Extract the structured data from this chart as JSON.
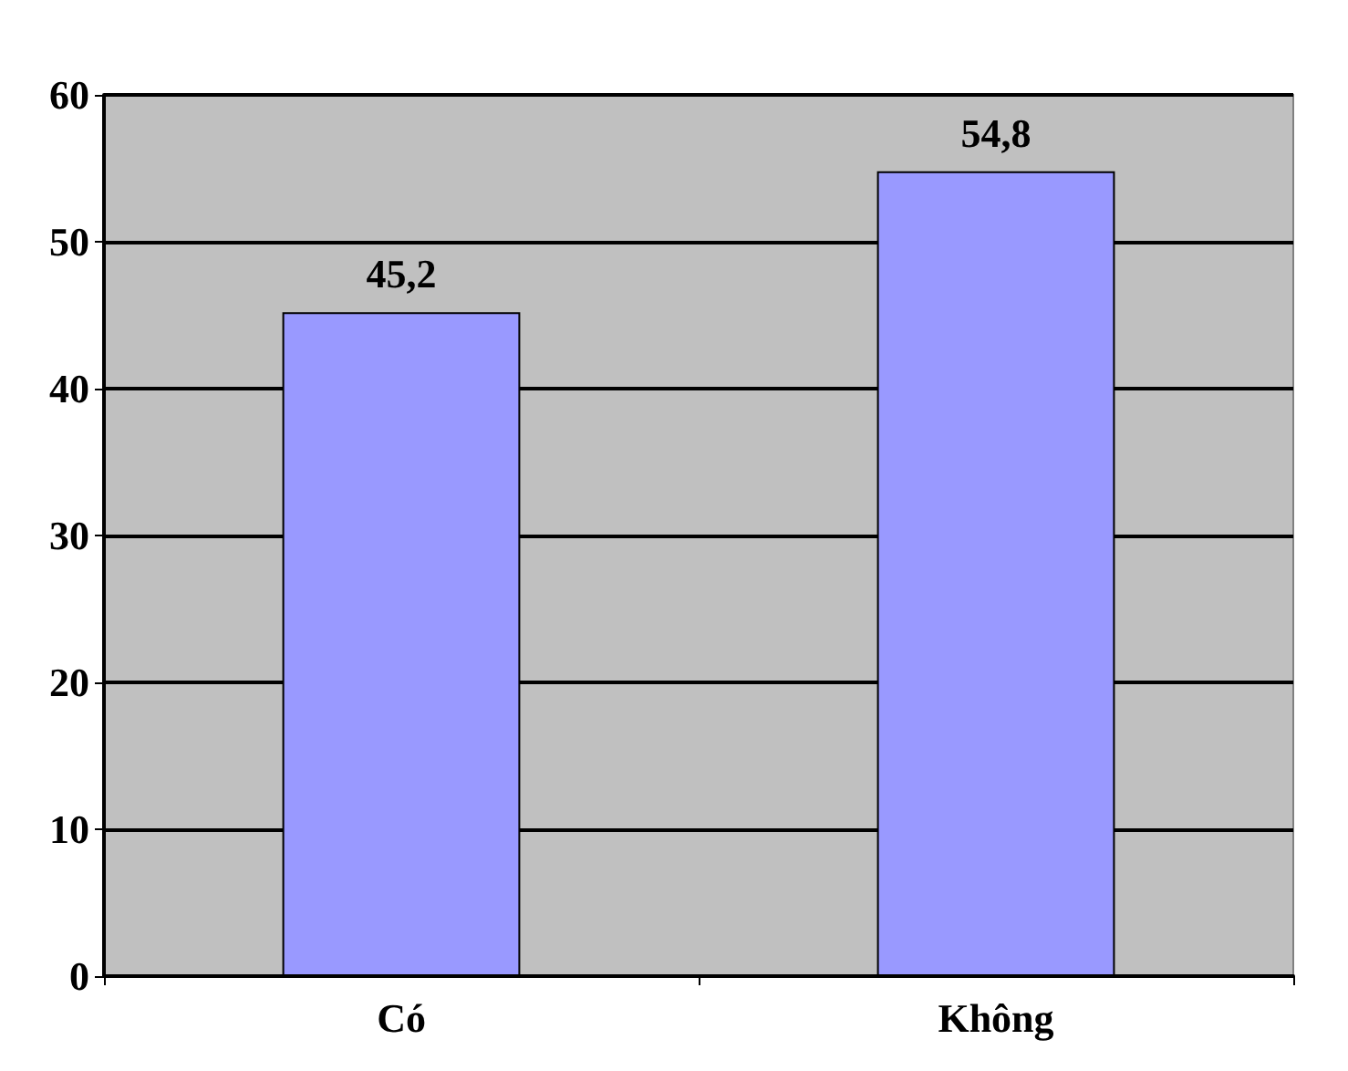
{
  "chart_data": {
    "type": "bar",
    "categories": [
      "Có",
      "Không"
    ],
    "values": [
      45.2,
      54.8
    ],
    "value_labels": [
      "45,2",
      "54,8"
    ],
    "color": "#9999ff",
    "ylim": [
      0,
      60
    ],
    "yticks": [
      0,
      10,
      20,
      30,
      40,
      50,
      60
    ],
    "grid": "y"
  }
}
